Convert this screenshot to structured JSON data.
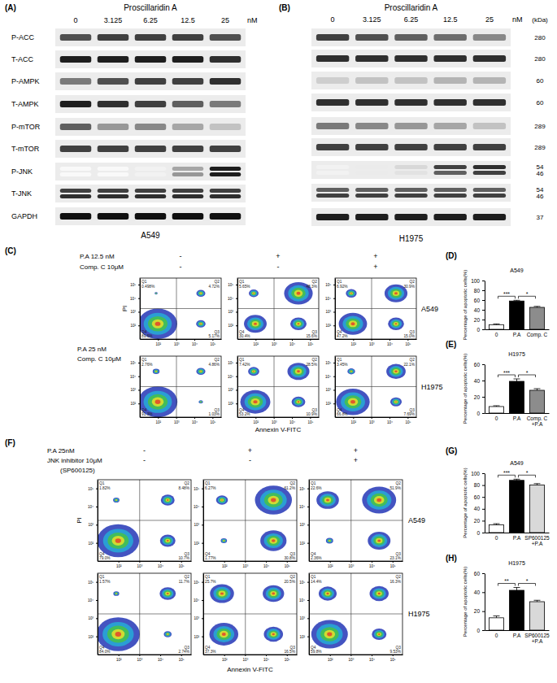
{
  "blots": [
    {
      "label": "(A)",
      "title": "Proscillaridin A",
      "concentrations": [
        0,
        3.125,
        6.25,
        12.5,
        25
      ],
      "unit": "nM",
      "cell_line": "A549",
      "rows": [
        {
          "name": "P-ACC",
          "bands": [
            [
              0.75,
              0.8,
              0.8,
              0.8,
              0.75
            ]
          ]
        },
        {
          "name": "T-ACC",
          "bands": [
            [
              0.9,
              0.9,
              0.9,
              0.9,
              0.85
            ]
          ]
        },
        {
          "name": "P-AMPK",
          "bands": [
            [
              0.6,
              0.75,
              0.8,
              0.8,
              0.85
            ]
          ]
        },
        {
          "name": "T-AMPK",
          "bands": [
            [
              0.9,
              0.85,
              0.8,
              0.7,
              0.6
            ]
          ]
        },
        {
          "name": "P-mTOR",
          "bands": [
            [
              0.7,
              0.5,
              0.55,
              0.45,
              0.35
            ]
          ]
        },
        {
          "name": "T-mTOR",
          "bands": [
            [
              0.8,
              0.8,
              0.8,
              0.8,
              0.8
            ]
          ]
        },
        {
          "name": "P-JNK",
          "bands": [
            [
              0.05,
              0.05,
              0.1,
              0.45,
              0.9
            ],
            [
              0.05,
              0.05,
              0.1,
              0.5,
              0.9
            ]
          ]
        },
        {
          "name": "T-JNK",
          "bands": [
            [
              0.8,
              0.8,
              0.8,
              0.8,
              0.8
            ],
            [
              0.85,
              0.85,
              0.85,
              0.85,
              0.85
            ]
          ]
        },
        {
          "name": "GAPDH",
          "bands": [
            [
              0.95,
              0.95,
              0.95,
              0.95,
              0.95
            ]
          ]
        }
      ]
    },
    {
      "label": "(B)",
      "title": "Proscillaridin A",
      "concentrations": [
        0,
        3.125,
        6.25,
        12.5,
        25
      ],
      "unit": "nM",
      "cell_line": "H1975",
      "kda_header": "(kDa)",
      "rows": [
        {
          "kda": [
            280
          ],
          "bands": [
            [
              0.8,
              0.75,
              0.7,
              0.65,
              0.55
            ]
          ]
        },
        {
          "kda": [
            280
          ],
          "bands": [
            [
              0.85,
              0.85,
              0.85,
              0.85,
              0.85
            ]
          ]
        },
        {
          "kda": [
            60
          ],
          "bands": [
            [
              0.3,
              0.35,
              0.35,
              0.4,
              0.4
            ]
          ]
        },
        {
          "kda": [
            60
          ],
          "bands": [
            [
              0.85,
              0.85,
              0.85,
              0.85,
              0.85
            ]
          ]
        },
        {
          "kda": [
            289
          ],
          "bands": [
            [
              0.6,
              0.55,
              0.5,
              0.45,
              0.35
            ]
          ]
        },
        {
          "kda": [
            289
          ],
          "bands": [
            [
              0.8,
              0.8,
              0.8,
              0.8,
              0.8
            ]
          ]
        },
        {
          "kda": [
            54,
            46
          ],
          "bands": [
            [
              0.1,
              0.15,
              0.25,
              0.8,
              0.85
            ],
            [
              0.1,
              0.15,
              0.2,
              0.7,
              0.8
            ]
          ]
        },
        {
          "kda": [
            54,
            46
          ],
          "bands": [
            [
              0.7,
              0.7,
              0.7,
              0.7,
              0.7
            ],
            [
              0.8,
              0.8,
              0.8,
              0.8,
              0.8
            ]
          ]
        },
        {
          "kda": [
            37
          ],
          "bands": [
            [
              0.9,
              0.9,
              0.9,
              0.9,
              0.9
            ]
          ]
        }
      ]
    }
  ],
  "flow": [
    {
      "label": "(C)",
      "x_label": "Annexin V-FITC",
      "y_label": "PI",
      "axes": {
        "log": true,
        "xlim": [
          10,
          300000
        ],
        "ylim": [
          10,
          300000
        ],
        "xticks": [
          {
            "value": 100,
            "label": "10²"
          },
          {
            "value": 1000,
            "label": "10³"
          },
          {
            "value": 10000,
            "label": "10⁴"
          },
          {
            "value": 100000,
            "label": "10⁵"
          }
        ],
        "yticks": [
          {
            "value": 100,
            "label": "10²"
          },
          {
            "value": 1000,
            "label": "10³"
          },
          {
            "value": 10000,
            "label": "10⁴"
          },
          {
            "value": 100000,
            "label": "10⁵"
          }
        ]
      },
      "treatments": [
        {
          "name": "P.A 12.5 nM",
          "signs": [
            "-",
            "+",
            "+"
          ]
        },
        {
          "name": "Comp. C 10μM",
          "signs": [
            "-",
            "-",
            "+"
          ]
        }
      ],
      "rows": [
        {
          "cell_line": "A549",
          "plots": [
            {
              "quadrants": [
                {
                  "name": "Q1",
                  "value": 0.498,
                  "label": "0.498%"
                },
                {
                  "name": "Q2",
                  "value": 4.72,
                  "label": "4.72%"
                },
                {
                  "name": "Q3",
                  "value": 5.17,
                  "label": "5.17%"
                },
                {
                  "name": "Q4",
                  "value": 89.6,
                  "label": "89.6%"
                }
              ]
            },
            {
              "quadrants": [
                {
                  "name": "Q1",
                  "value": 5.65,
                  "label": "5.65%"
                },
                {
                  "name": "Q2",
                  "value": 48.3,
                  "label": "48.3%"
                },
                {
                  "name": "Q3",
                  "value": 15.6,
                  "label": "15.6%"
                },
                {
                  "name": "Q4",
                  "value": 30.4,
                  "label": "30.4%"
                }
              ]
            },
            {
              "quadrants": [
                {
                  "name": "Q1",
                  "value": 6.92,
                  "label": "6.92%"
                },
                {
                  "name": "Q2",
                  "value": 30.9,
                  "label": "30.9%"
                },
                {
                  "name": "Q3",
                  "value": 15.0,
                  "label": "15.0%"
                },
                {
                  "name": "Q4",
                  "value": 47.2,
                  "label": "47.2%"
                }
              ]
            }
          ]
        },
        {
          "cell_line": "H1975",
          "treatments": [
            "P.A 25 nM",
            "Comp. C 10μM"
          ],
          "plots": [
            {
              "quadrants": [
                {
                  "name": "Q1",
                  "value": 2.76,
                  "label": "2.76%"
                },
                {
                  "name": "Q2",
                  "value": 4.86,
                  "label": "4.86%"
                },
                {
                  "name": "Q3",
                  "value": 1.03,
                  "label": "1.03%"
                },
                {
                  "name": "Q4",
                  "value": 91.3,
                  "label": "91.3%"
                }
              ]
            },
            {
              "quadrants": [
                {
                  "name": "Q1",
                  "value": 7.42,
                  "label": "7.42%"
                },
                {
                  "name": "Q2",
                  "value": 28.5,
                  "label": "28.5%"
                },
                {
                  "name": "Q3",
                  "value": 10.9,
                  "label": "10.9%"
                },
                {
                  "name": "Q4",
                  "value": 53.2,
                  "label": "53.2%"
                }
              ]
            },
            {
              "quadrants": [
                {
                  "name": "Q1",
                  "value": 3.45,
                  "label": "3.45%"
                },
                {
                  "name": "Q2",
                  "value": 22.1,
                  "label": "22.1%"
                },
                {
                  "name": "Q3",
                  "value": 7.69,
                  "label": "7.69%"
                },
                {
                  "name": "Q4",
                  "value": 66.8,
                  "label": "66.8%"
                }
              ]
            }
          ]
        }
      ]
    },
    {
      "label": "(F)",
      "x_label": "Annexin V-FITC",
      "y_label": "PI",
      "axes": {
        "log": true,
        "xlim": [
          10,
          300000
        ],
        "ylim": [
          10,
          300000
        ],
        "xticks": [
          {
            "value": 100,
            "label": "10²"
          },
          {
            "value": 1000,
            "label": "10³"
          },
          {
            "value": 10000,
            "label": "10⁴"
          },
          {
            "value": 100000,
            "label": "10⁵"
          }
        ],
        "yticks": [
          {
            "value": 100,
            "label": "10²"
          },
          {
            "value": 1000,
            "label": "10³"
          },
          {
            "value": 10000,
            "label": "10⁴"
          },
          {
            "value": 100000,
            "label": "10⁵"
          }
        ]
      },
      "treatments": [
        {
          "name": "P.A 25nM",
          "signs": [
            "-",
            "+",
            "+"
          ]
        },
        {
          "name": "JNK inhibitor 10μM",
          "signs": [
            "-",
            "-",
            "+"
          ]
        }
      ],
      "treatment_note": "(SP600125)",
      "rows": [
        {
          "cell_line": "A549",
          "plots": [
            {
              "quadrants": [
                {
                  "name": "Q1",
                  "value": 1.82,
                  "label": "1.82%"
                },
                {
                  "name": "Q2",
                  "value": 8.48,
                  "label": "8.48%"
                },
                {
                  "name": "Q3",
                  "value": 10.7,
                  "label": "10.7%"
                },
                {
                  "name": "Q4",
                  "value": 79.0,
                  "label": "79.0%"
                }
              ]
            },
            {
              "quadrants": [
                {
                  "name": "Q1",
                  "value": 6.27,
                  "label": "6.27%"
                },
                {
                  "name": "Q2",
                  "value": 61.2,
                  "label": "61.2%"
                },
                {
                  "name": "Q3",
                  "value": 30.8,
                  "label": "30.8%"
                },
                {
                  "name": "Q4",
                  "value": 1.77,
                  "label": "1.77%"
                }
              ]
            },
            {
              "quadrants": [
                {
                  "name": "Q1",
                  "value": 22.6,
                  "label": "22.6%"
                },
                {
                  "name": "Q2",
                  "value": 51.9,
                  "label": "51.9%"
                },
                {
                  "name": "Q3",
                  "value": 23.1,
                  "label": "23.1%"
                },
                {
                  "name": "Q4",
                  "value": 2.36,
                  "label": "2.36%"
                }
              ]
            }
          ]
        },
        {
          "cell_line": "H1975",
          "plots": [
            {
              "quadrants": [
                {
                  "name": "Q1",
                  "value": 1.57,
                  "label": "1.57%"
                },
                {
                  "name": "Q2",
                  "value": 11.7,
                  "label": "11.7%"
                },
                {
                  "name": "Q3",
                  "value": 2.74,
                  "label": "2.74%"
                },
                {
                  "name": "Q4",
                  "value": 84.0,
                  "label": "84.0%"
                }
              ]
            },
            {
              "quadrants": [
                {
                  "name": "Q1",
                  "value": 25.7,
                  "label": "25.7%"
                },
                {
                  "name": "Q2",
                  "value": 20.5,
                  "label": "20.5%"
                },
                {
                  "name": "Q3",
                  "value": 16.5,
                  "label": "16.5%"
                },
                {
                  "name": "Q4",
                  "value": 37.3,
                  "label": "37.3%"
                }
              ]
            },
            {
              "quadrants": [
                {
                  "name": "Q1",
                  "value": 14.4,
                  "label": "14.4%"
                },
                {
                  "name": "Q2",
                  "value": 16.3,
                  "label": "16.3%"
                },
                {
                  "name": "Q3",
                  "value": 9.53,
                  "label": "9.53%"
                },
                {
                  "name": "Q4",
                  "value": 59.8,
                  "label": "59.8%"
                }
              ]
            }
          ]
        }
      ]
    }
  ],
  "chart_data": [
    {
      "type": "bar",
      "label": "(D)",
      "title": "A549",
      "y_label": "Percentage of apoptotic cells(%)",
      "categories": [
        "0",
        "P.A",
        "Comp. C"
      ],
      "values": [
        9.5,
        58,
        45
      ],
      "errors": [
        1.5,
        1.5,
        2
      ],
      "colors": [
        "#ffffff",
        "#000000",
        "#8c8c8c"
      ],
      "ylim": [
        0,
        100
      ],
      "yticks": [
        0,
        20,
        40,
        60,
        80,
        100
      ],
      "significance": [
        {
          "between": [
            "0",
            "P.A"
          ],
          "label": "***"
        },
        {
          "between": [
            "P.A",
            "Comp. C"
          ],
          "label": "*"
        }
      ]
    },
    {
      "type": "bar",
      "label": "(E)",
      "title": "H1975",
      "y_label": "Percentage of apoptotic cells(%)",
      "categories": [
        "0",
        "P.A",
        "Comp. C\n+P.A"
      ],
      "values": [
        8,
        39,
        28
      ],
      "errors": [
        1,
        3,
        2
      ],
      "colors": [
        "#ffffff",
        "#000000",
        "#8c8c8c"
      ],
      "ylim": [
        0,
        60
      ],
      "yticks": [
        0,
        20,
        40,
        60
      ],
      "significance": [
        {
          "between": [
            "0",
            "P.A"
          ],
          "label": "***"
        },
        {
          "between": [
            "P.A",
            "Comp. C\n+P.A"
          ],
          "label": "*"
        }
      ]
    },
    {
      "type": "bar",
      "label": "(G)",
      "title": "A549",
      "y_label": "Percentage of apoptotic cells(%)",
      "categories": [
        "0",
        "P.A",
        "SP600125\n+P.A"
      ],
      "values": [
        13,
        88,
        80
      ],
      "errors": [
        2,
        2,
        2.5
      ],
      "colors": [
        "#ffffff",
        "#000000",
        "#d9d9d9"
      ],
      "ylim": [
        0,
        100
      ],
      "yticks": [
        0,
        20,
        40,
        60,
        80,
        100
      ],
      "significance": [
        {
          "between": [
            "0",
            "P.A"
          ],
          "label": "***"
        },
        {
          "between": [
            "P.A",
            "SP600125\n+P.A"
          ],
          "label": "*"
        }
      ]
    },
    {
      "type": "bar",
      "label": "(H)",
      "title": "H1975",
      "y_label": "Percentage of apoptotic cells(%)",
      "categories": [
        "0",
        "P.A",
        "SP600125\n+P.A"
      ],
      "values": [
        13,
        42,
        30
      ],
      "errors": [
        2,
        3,
        1.5
      ],
      "colors": [
        "#ffffff",
        "#000000",
        "#d9d9d9"
      ],
      "ylim": [
        0,
        60
      ],
      "yticks": [
        0,
        20,
        40,
        60
      ],
      "significance": [
        {
          "between": [
            "0",
            "P.A"
          ],
          "label": "**"
        },
        {
          "between": [
            "P.A",
            "SP600125\n+P.A"
          ],
          "label": "*"
        }
      ]
    }
  ]
}
